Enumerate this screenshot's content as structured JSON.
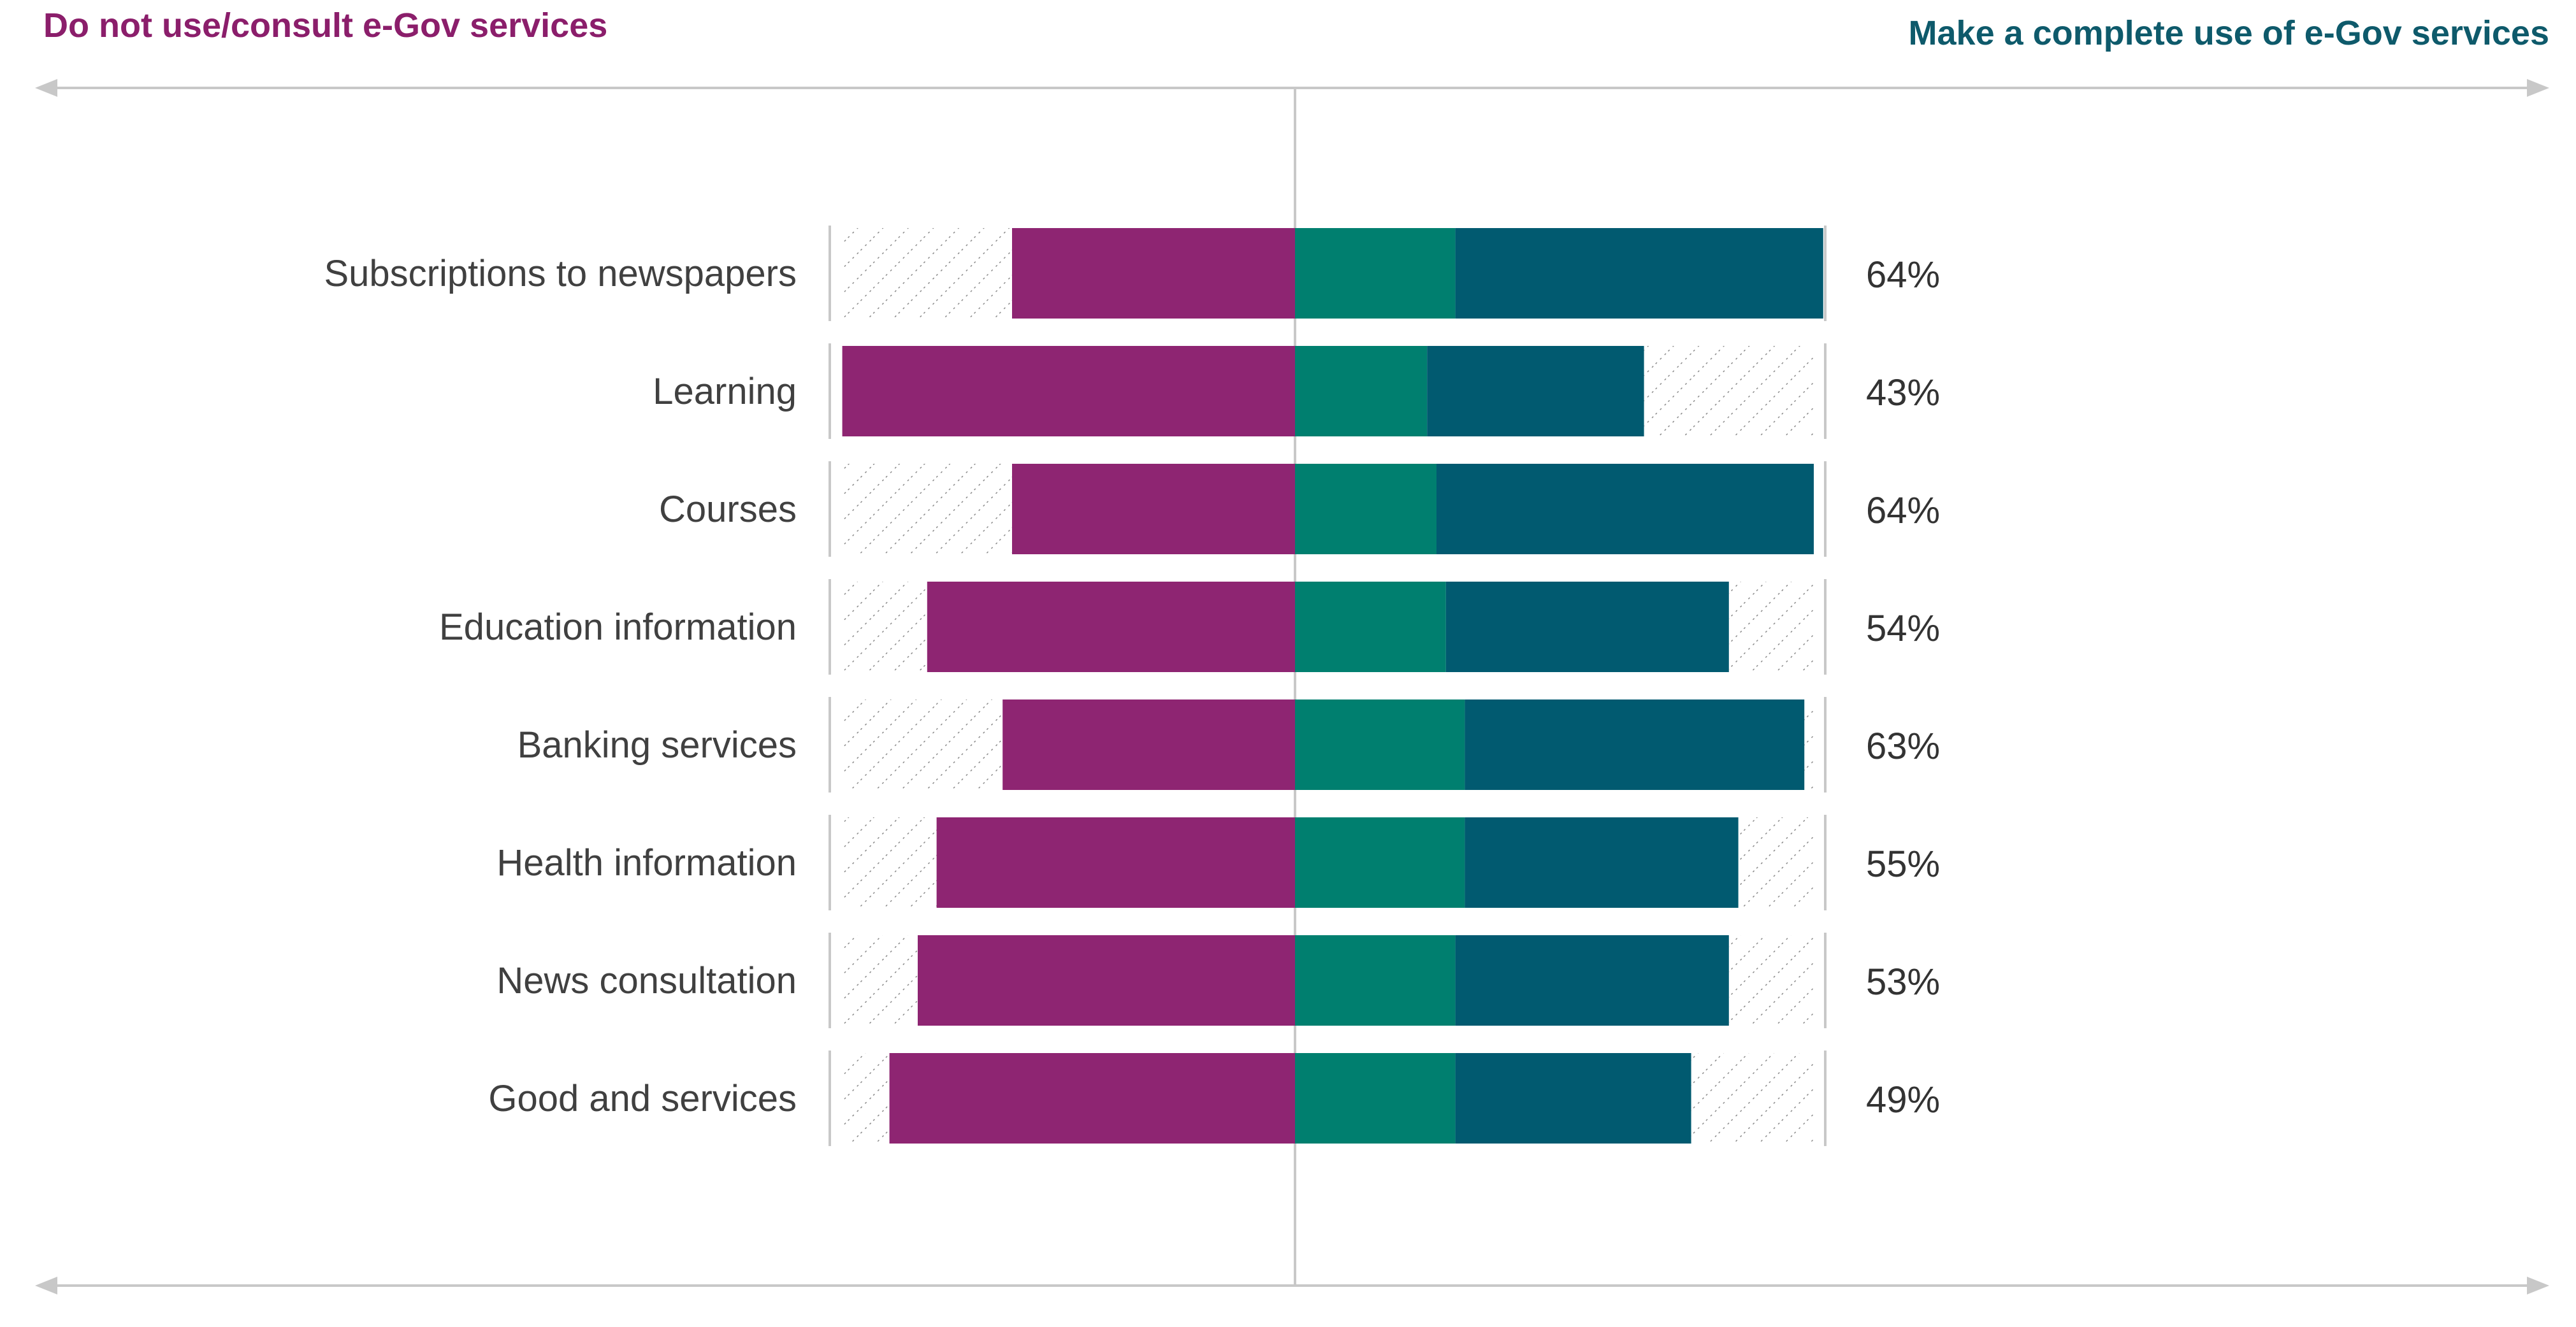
{
  "header": {
    "left_title": "Do not use/consult e-Gov services",
    "right_title": "Make a complete use of e-Gov services"
  },
  "colors": {
    "left_title": "#8b1e6b",
    "right_title": "#0e5a6b",
    "purple": "#8e2572",
    "teal": "#007f6f",
    "dark_teal": "#015a70",
    "guide": "#c8c8c8",
    "hatch": "#8a8a8a"
  },
  "chart_data": {
    "type": "bar",
    "orientation": "horizontal-diverging",
    "categories": [
      "Subscriptions to newspapers",
      "Learning",
      "Courses",
      "Education information",
      "Banking services",
      "Health information",
      "News consultation",
      "Good and services"
    ],
    "value_labels": [
      "64%",
      "43%",
      "64%",
      "54%",
      "63%",
      "55%",
      "53%",
      "49%"
    ],
    "series": [
      {
        "side": "left",
        "segment": "hatched",
        "values": [
          18,
          0,
          18,
          9,
          17,
          10,
          8,
          5
        ]
      },
      {
        "side": "left",
        "segment": "purple",
        "values": [
          30,
          48,
          30,
          39,
          31,
          38,
          40,
          43
        ]
      },
      {
        "side": "right",
        "segment": "teal",
        "values": [
          17,
          14,
          15,
          16,
          18,
          18,
          17,
          17
        ]
      },
      {
        "side": "right",
        "segment": "dark_teal",
        "values": [
          39,
          23,
          40,
          30,
          36,
          29,
          29,
          25
        ]
      },
      {
        "side": "right",
        "segment": "hatched",
        "values": [
          0,
          18,
          0,
          9,
          1,
          8,
          9,
          13
        ]
      }
    ],
    "legend": "none",
    "grid": false
  }
}
